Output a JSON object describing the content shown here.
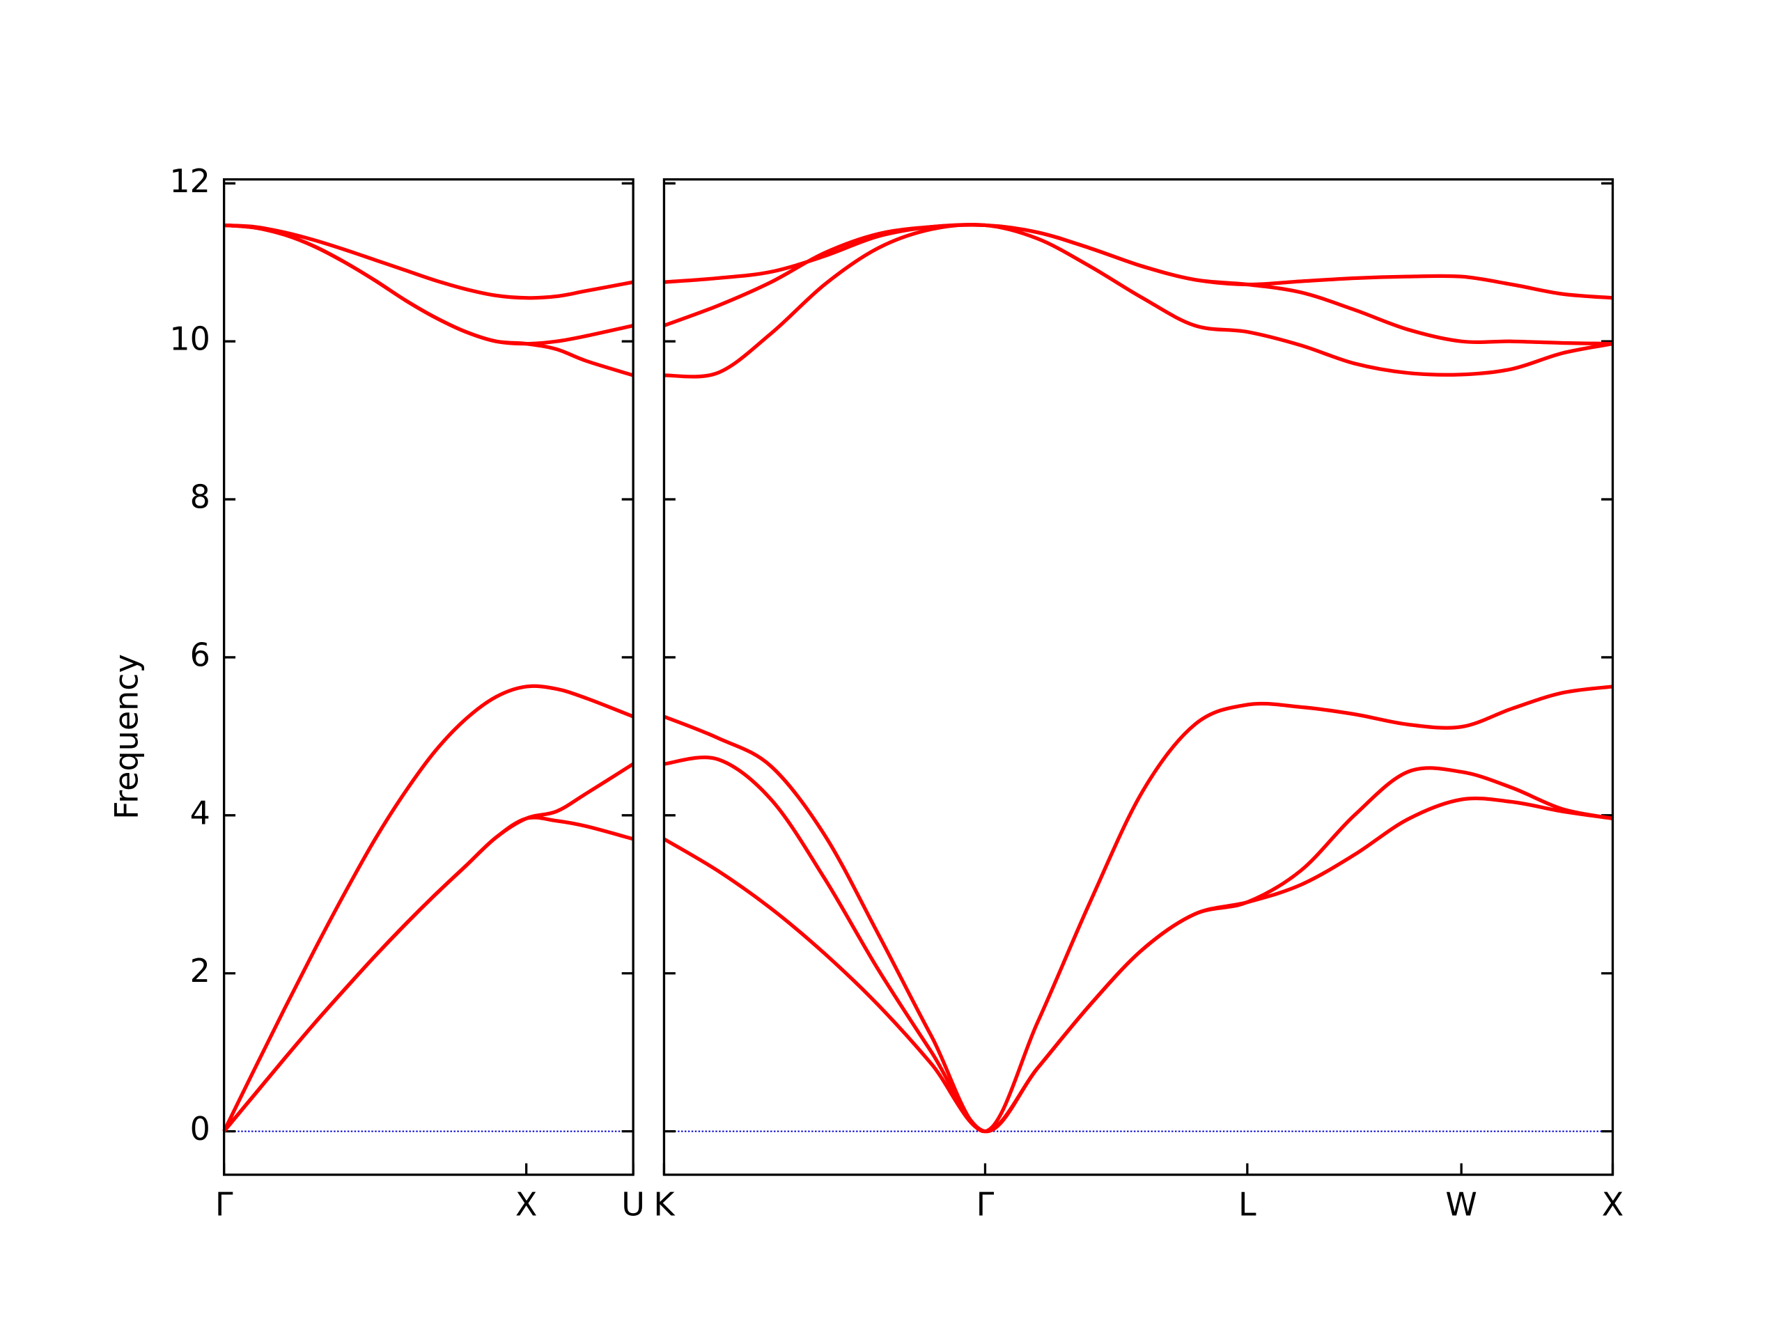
{
  "chart_data": [
    {
      "type": "line",
      "ylabel": "Frequency",
      "x": [
        0,
        0.1,
        0.2,
        0.3,
        0.4,
        0.5,
        0.6,
        0.7,
        0.8,
        0.9,
        1.0,
        1.1,
        1.2,
        1.3536
      ],
      "xlim": [
        0,
        1.3536
      ],
      "xticks": [
        {
          "value": 0,
          "label": "Γ"
        },
        {
          "value": 1.0,
          "label": "X"
        },
        {
          "value": 1.3536,
          "label": "U"
        }
      ],
      "ylim": [
        -0.55,
        12.05
      ],
      "yticks": [
        0,
        2,
        4,
        6,
        8,
        10,
        12
      ],
      "ytick_labels": true,
      "hline": 0,
      "hline_color": "#0000cc",
      "series": [
        {
          "color": "#ff0000",
          "values": [
            0,
            0.46,
            0.92,
            1.37,
            1.8,
            2.22,
            2.62,
            3.0,
            3.36,
            3.72,
            3.96,
            3.93,
            3.86,
            3.7
          ]
        },
        {
          "color": "#ff0000",
          "values": [
            0,
            0.46,
            0.92,
            1.37,
            1.8,
            2.22,
            2.62,
            3.0,
            3.36,
            3.72,
            3.96,
            4.05,
            4.28,
            4.65
          ]
        },
        {
          "color": "#ff0000",
          "values": [
            0,
            0.78,
            1.55,
            2.3,
            3.02,
            3.7,
            4.3,
            4.82,
            5.22,
            5.5,
            5.63,
            5.6,
            5.48,
            5.25
          ]
        },
        {
          "color": "#ff0000",
          "values": [
            11.47,
            11.44,
            11.35,
            11.2,
            11.0,
            10.77,
            10.52,
            10.3,
            10.12,
            10.0,
            9.97,
            9.9,
            9.75,
            9.57
          ]
        },
        {
          "color": "#ff0000",
          "values": [
            11.47,
            11.44,
            11.35,
            11.2,
            11.0,
            10.77,
            10.52,
            10.3,
            10.12,
            10.0,
            9.97,
            10.0,
            10.07,
            10.2
          ]
        },
        {
          "color": "#ff0000",
          "values": [
            11.47,
            11.45,
            11.38,
            11.28,
            11.16,
            11.03,
            10.9,
            10.77,
            10.66,
            10.58,
            10.55,
            10.57,
            10.64,
            10.75
          ]
        }
      ]
    },
    {
      "type": "line",
      "x": [
        1.3536,
        1.5304,
        1.7072,
        1.884,
        2.0607,
        2.2375,
        2.4143,
        2.5875,
        2.7607,
        2.9339,
        3.1071,
        3.2803,
        3.4571,
        3.6339,
        3.8106,
        3.9874,
        4.1541,
        4.3207,
        4.4874
      ],
      "xlim": [
        1.3536,
        4.4874
      ],
      "xticks": [
        {
          "value": 1.3536,
          "label": "K"
        },
        {
          "value": 2.4143,
          "label": "Γ"
        },
        {
          "value": 3.2803,
          "label": "L"
        },
        {
          "value": 3.9874,
          "label": "W"
        },
        {
          "value": 4.4874,
          "label": "X"
        }
      ],
      "ylim": [
        -0.55,
        12.05
      ],
      "yticks": [
        0,
        2,
        4,
        6,
        8,
        10,
        12
      ],
      "ytick_labels": false,
      "hline": 0,
      "hline_color": "#0000cc",
      "series": [
        {
          "color": "#ff0000",
          "values": [
            3.7,
            3.3,
            2.82,
            2.25,
            1.6,
            0.85,
            0,
            0.8,
            1.6,
            2.3,
            2.75,
            2.9,
            3.12,
            3.5,
            3.95,
            4.2,
            4.17,
            4.05,
            3.96
          ]
        },
        {
          "color": "#ff0000",
          "values": [
            4.65,
            4.71,
            4.2,
            3.2,
            2.05,
            1.0,
            0,
            0.8,
            1.6,
            2.3,
            2.75,
            2.9,
            3.3,
            4.0,
            4.55,
            4.55,
            4.35,
            4.08,
            3.96
          ]
        },
        {
          "color": "#ff0000",
          "values": [
            5.25,
            4.98,
            4.62,
            3.75,
            2.5,
            1.2,
            0,
            1.38,
            2.9,
            4.3,
            5.15,
            5.4,
            5.37,
            5.28,
            5.15,
            5.12,
            5.35,
            5.55,
            5.63
          ]
        },
        {
          "color": "#ff0000",
          "values": [
            9.57,
            9.6,
            10.1,
            10.72,
            11.18,
            11.42,
            11.47,
            11.3,
            10.95,
            10.55,
            10.2,
            10.12,
            9.95,
            9.72,
            9.6,
            9.58,
            9.65,
            9.85,
            9.97
          ]
        },
        {
          "color": "#ff0000",
          "values": [
            10.2,
            10.45,
            10.75,
            11.12,
            11.36,
            11.45,
            11.47,
            11.38,
            11.18,
            10.95,
            10.78,
            10.72,
            10.62,
            10.4,
            10.15,
            10.0,
            10.0,
            9.98,
            9.97
          ]
        },
        {
          "color": "#ff0000",
          "values": [
            10.75,
            10.8,
            10.88,
            11.08,
            11.33,
            11.45,
            11.47,
            11.38,
            11.18,
            10.95,
            10.78,
            10.72,
            10.76,
            10.8,
            10.82,
            10.82,
            10.72,
            10.6,
            10.55
          ]
        }
      ]
    }
  ]
}
